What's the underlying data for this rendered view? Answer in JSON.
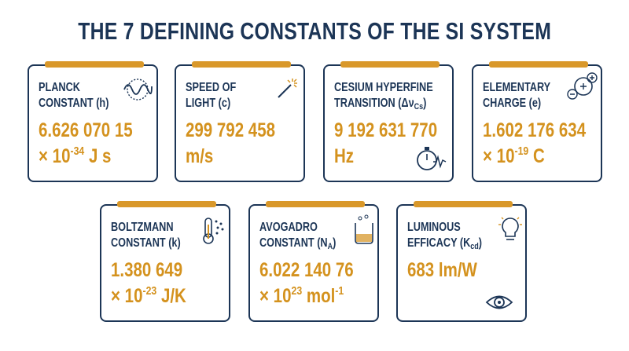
{
  "title": "THE 7 DEFINING CONSTANTS OF THE SI SYSTEM",
  "cards": [
    {
      "name": [
        [
          "PLANCK"
        ],
        [
          "CONSTANT (h)"
        ]
      ],
      "value": [
        [
          "6.626 070 15"
        ],
        [
          "× 10",
          {
            "sup": "-34"
          },
          " J s"
        ]
      ]
    },
    {
      "name": [
        [
          "SPEED OF"
        ],
        [
          "LIGHT (c)"
        ]
      ],
      "value": [
        [
          "299 792 458"
        ],
        [
          "m/s"
        ]
      ]
    },
    {
      "name": [
        [
          "CESIUM HYPERFINE"
        ],
        [
          "TRANSITION (Δν",
          {
            "sub": "Cs"
          },
          ")"
        ]
      ],
      "value": [
        [
          "9 192 631 770"
        ],
        [
          "Hz"
        ]
      ]
    },
    {
      "name": [
        [
          "ELEMENTARY"
        ],
        [
          "CHARGE (e)"
        ]
      ],
      "value": [
        [
          "1.602 176 634"
        ],
        [
          "× 10",
          {
            "sup": "-19"
          },
          " C"
        ]
      ]
    },
    {
      "name": [
        [
          "BOLTZMANN"
        ],
        [
          "CONSTANT (k)"
        ]
      ],
      "value": [
        [
          "1.380 649"
        ],
        [
          "× 10",
          {
            "sup": "-23"
          },
          " J/K"
        ]
      ]
    },
    {
      "name": [
        [
          "AVOGADRO"
        ],
        [
          "CONSTANT (N",
          {
            "sub": "A"
          },
          ")"
        ]
      ],
      "value": [
        [
          "6.022 140 76"
        ],
        [
          "× 10",
          {
            "sup": "23"
          },
          " mol",
          {
            "sup": "-1"
          }
        ]
      ]
    },
    {
      "name": [
        [
          "LUMINOUS"
        ],
        [
          "EFFICACY (K",
          {
            "sub": "cd"
          },
          ")"
        ]
      ],
      "value": [
        [
          "683 lm/W"
        ]
      ]
    }
  ]
}
